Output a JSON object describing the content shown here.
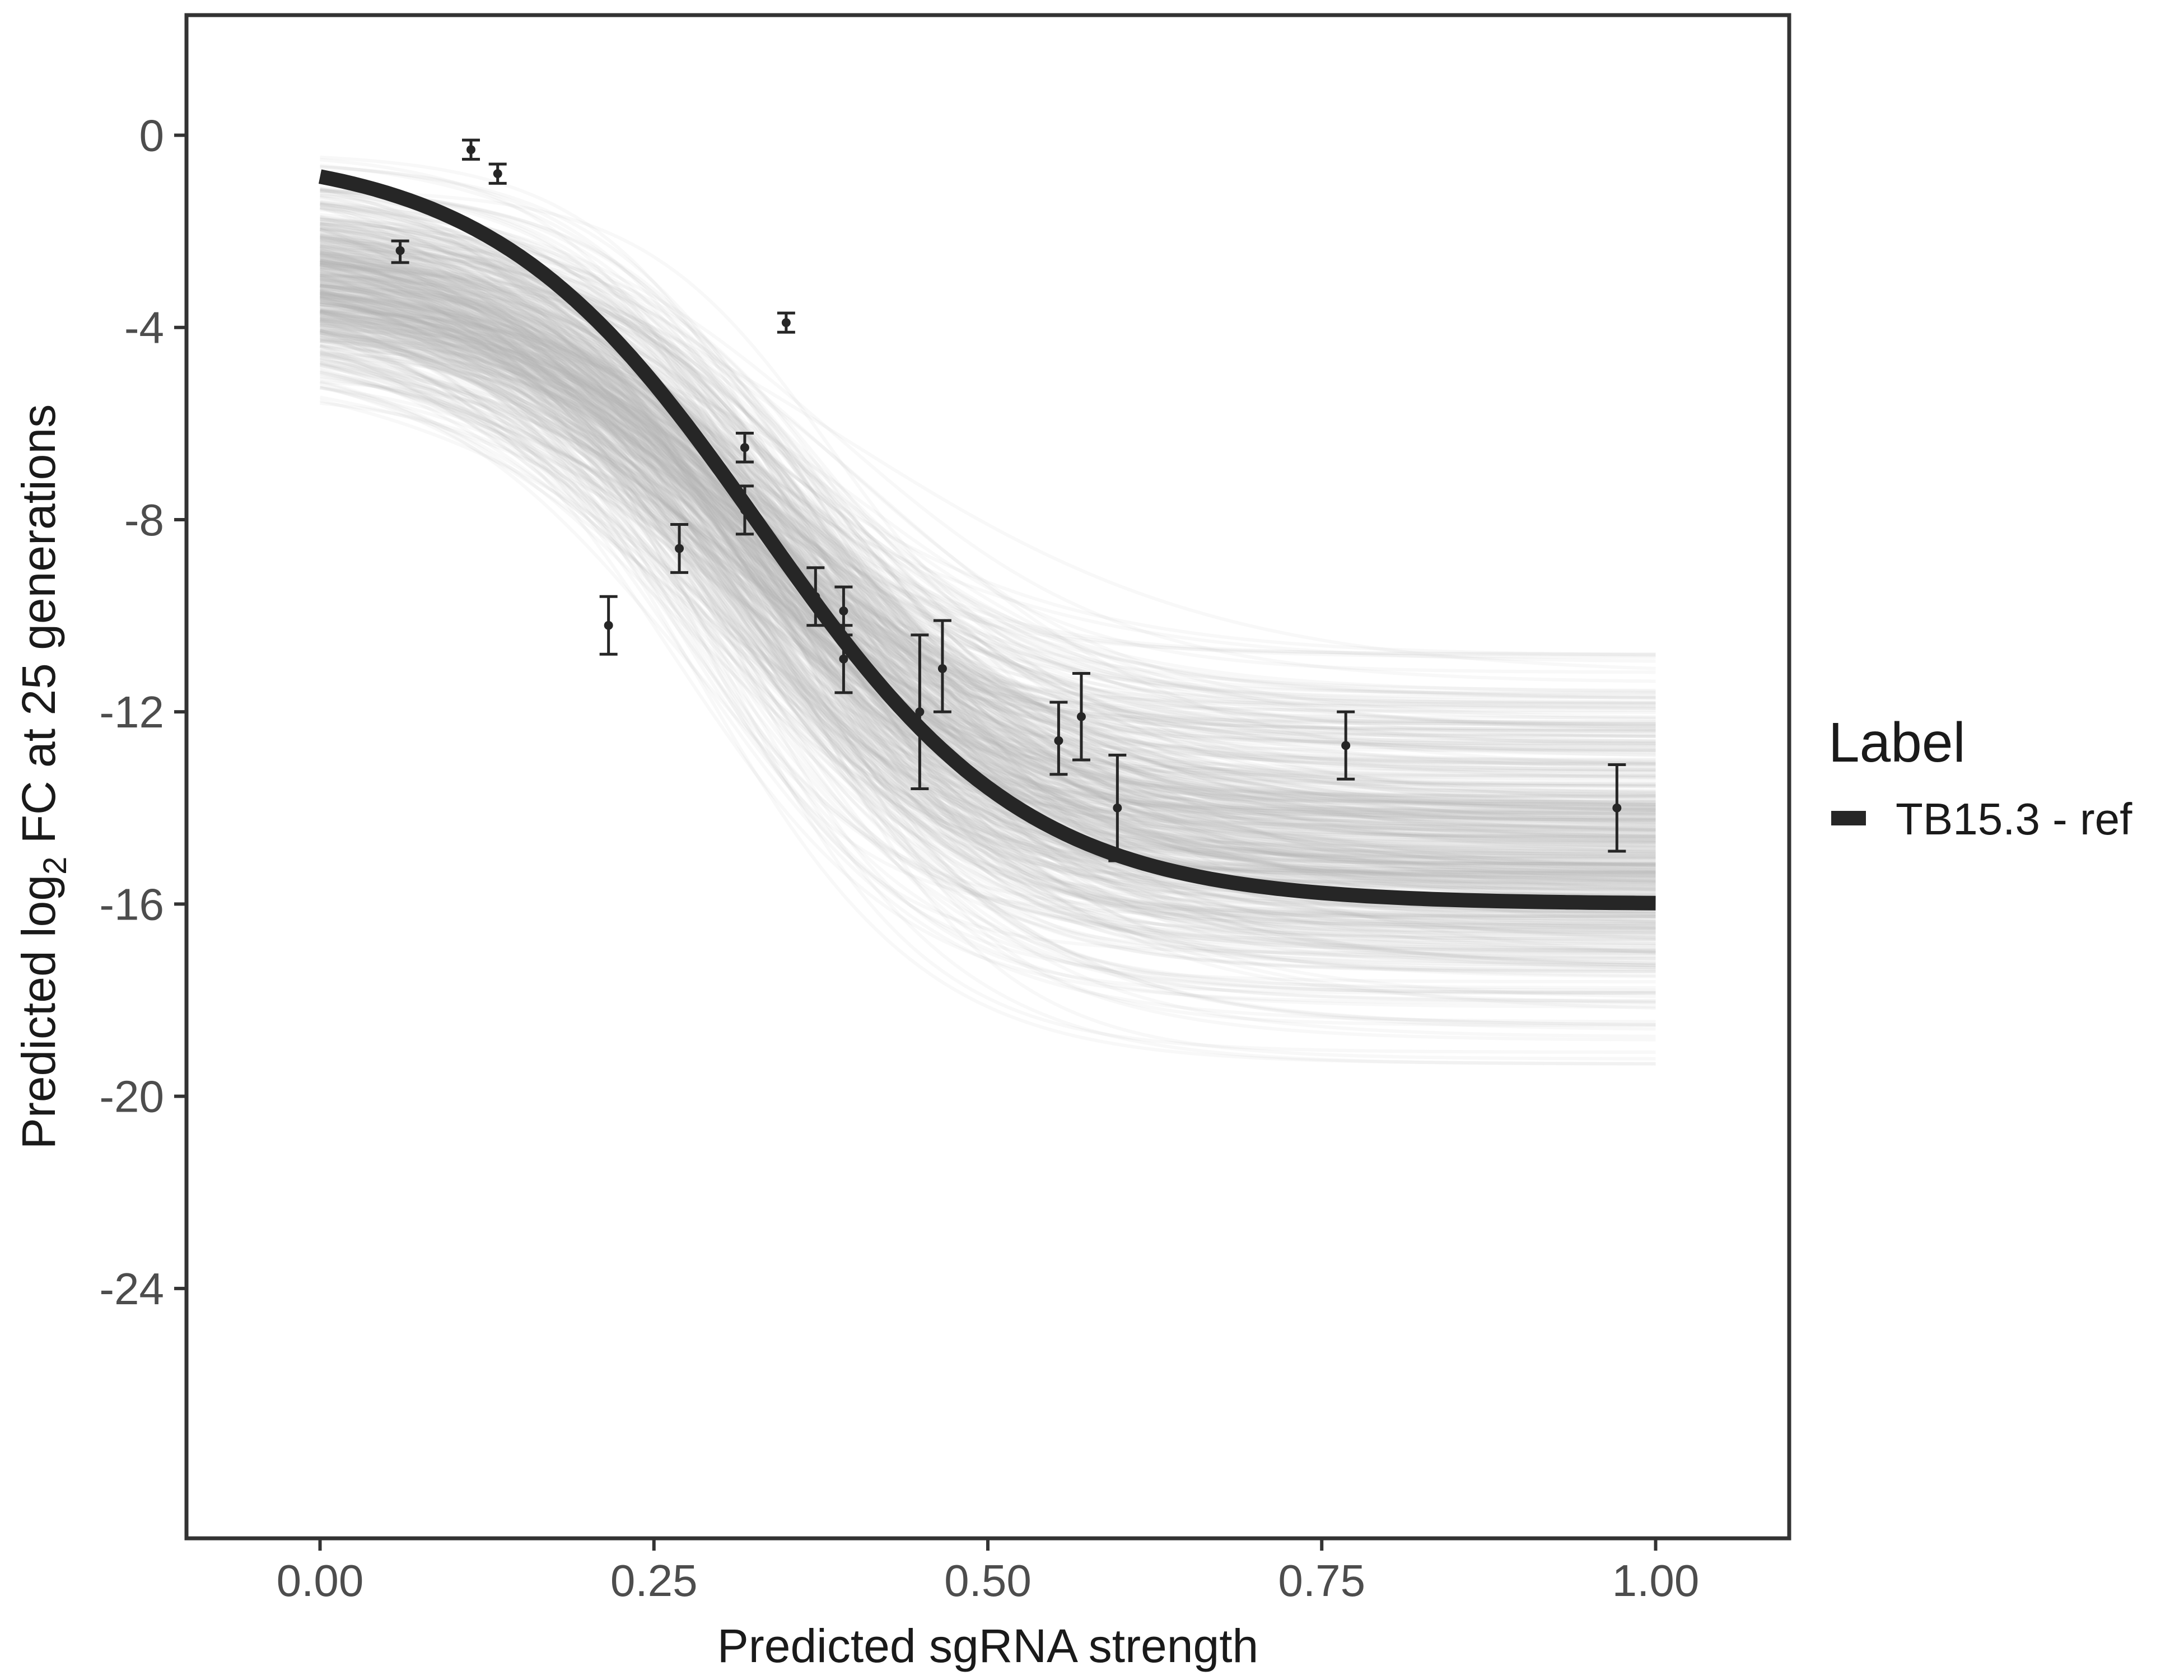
{
  "chart_data": {
    "type": "line",
    "title": "",
    "xlabel": "Predicted sgRNA strength",
    "ylabel_parts": {
      "before": "Predicted  log",
      "subscript": "2",
      "after": " FC at 25 generations"
    },
    "xlim": [
      -0.1,
      1.1
    ],
    "ylim": [
      -29.2,
      2.5
    ],
    "x_ticks": [
      0.0,
      0.25,
      0.5,
      0.75,
      1.0
    ],
    "x_tick_labels": [
      "0.00",
      "0.25",
      "0.50",
      "0.75",
      "1.00"
    ],
    "y_ticks": [
      0,
      -4,
      -8,
      -12,
      -16,
      -20,
      -24
    ],
    "y_tick_labels": [
      "0",
      "-4",
      "-8",
      "-12",
      "-16",
      "-20",
      "-24"
    ],
    "grid": false,
    "legend": {
      "title": "Label",
      "position": "right",
      "entries": [
        {
          "label": "TB15.3 - ref",
          "color": "#262626"
        }
      ]
    },
    "series": [
      {
        "name": "TB15.3 - ref",
        "kind": "fitted-logistic",
        "lower": -16.0,
        "upper": -0.3,
        "midpoint": 0.33,
        "slope": 10.0,
        "color": "#262626"
      }
    ],
    "posterior_draws": {
      "color": "#b0b0b0",
      "lower_range": [
        -20.0,
        -10.0
      ],
      "upper_range": [
        -5.5,
        0.3
      ],
      "midpoint_range": [
        0.22,
        0.44
      ],
      "slope_range": [
        7.0,
        14.5
      ]
    },
    "observations": [
      {
        "x": 0.06,
        "y": -2.4,
        "ymin": -2.65,
        "ymax": -2.2
      },
      {
        "x": 0.113,
        "y": -0.3,
        "ymin": -0.5,
        "ymax": -0.1
      },
      {
        "x": 0.133,
        "y": -0.8,
        "ymin": -1.0,
        "ymax": -0.6
      },
      {
        "x": 0.216,
        "y": -10.2,
        "ymin": -10.8,
        "ymax": -9.6
      },
      {
        "x": 0.269,
        "y": -8.6,
        "ymin": -9.1,
        "ymax": -8.1
      },
      {
        "x": 0.318,
        "y": -6.5,
        "ymin": -6.8,
        "ymax": -6.2
      },
      {
        "x": 0.318,
        "y": -7.8,
        "ymin": -8.3,
        "ymax": -7.3
      },
      {
        "x": 0.349,
        "y": -3.9,
        "ymin": -4.1,
        "ymax": -3.7
      },
      {
        "x": 0.371,
        "y": -9.6,
        "ymin": -10.2,
        "ymax": -9.0
      },
      {
        "x": 0.392,
        "y": -9.9,
        "ymin": -10.4,
        "ymax": -9.4
      },
      {
        "x": 0.392,
        "y": -10.9,
        "ymin": -11.6,
        "ymax": -10.2
      },
      {
        "x": 0.449,
        "y": -12.0,
        "ymin": -13.6,
        "ymax": -10.4
      },
      {
        "x": 0.466,
        "y": -11.1,
        "ymin": -12.0,
        "ymax": -10.1
      },
      {
        "x": 0.553,
        "y": -12.6,
        "ymin": -13.3,
        "ymax": -11.8
      },
      {
        "x": 0.57,
        "y": -12.1,
        "ymin": -13.0,
        "ymax": -11.2
      },
      {
        "x": 0.597,
        "y": -14.0,
        "ymin": -15.1,
        "ymax": -12.9
      },
      {
        "x": 0.768,
        "y": -12.7,
        "ymin": -13.4,
        "ymax": -12.0
      },
      {
        "x": 0.971,
        "y": -14.0,
        "ymin": -14.9,
        "ymax": -13.1
      }
    ]
  }
}
